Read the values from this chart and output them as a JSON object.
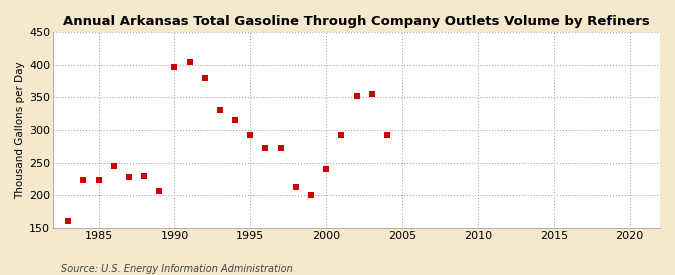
{
  "title": "Annual Arkansas Total Gasoline Through Company Outlets Volume by Refiners",
  "ylabel": "Thousand Gallons per Day",
  "source": "Source: U.S. Energy Information Administration",
  "background_color": "#f5e8cc",
  "plot_bg_color": "#ffffff",
  "marker_color": "#cc0000",
  "marker_style": "s",
  "marker_size": 4,
  "xlim": [
    1982,
    2022
  ],
  "ylim": [
    150,
    450
  ],
  "yticks": [
    150,
    200,
    250,
    300,
    350,
    400,
    450
  ],
  "xticks": [
    1985,
    1990,
    1995,
    2000,
    2005,
    2010,
    2015,
    2020
  ],
  "years": [
    1983,
    1984,
    1985,
    1986,
    1987,
    1988,
    1989,
    1990,
    1991,
    1992,
    1993,
    1994,
    1995,
    1996,
    1997,
    1998,
    1999,
    2000,
    2001,
    2002,
    2003,
    2004
  ],
  "values": [
    160,
    224,
    224,
    245,
    228,
    230,
    207,
    397,
    404,
    380,
    330,
    315,
    292,
    272,
    272,
    213,
    200,
    241,
    292,
    352,
    355,
    293
  ]
}
